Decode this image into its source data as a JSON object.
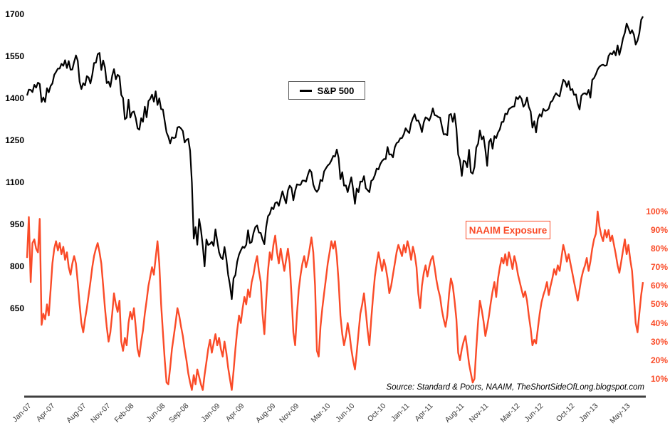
{
  "legend": {
    "sp500": "S&P 500",
    "naaim": "NAAIM Exposure"
  },
  "colors": {
    "sp500_line": "#000000",
    "naaim_line": "#fa4b28",
    "axis_line": "#3f3f3f",
    "x_label": "#3a3a3a"
  },
  "chart_data": {
    "type": "line",
    "frequency": "weekly",
    "title": "",
    "source_note": "Source: Standard & Poors, NAAIM, TheShortSideOfLong.blogspot.com",
    "x_tick_labels": [
      "Jan-07",
      "Apr-07",
      "Aug-07",
      "Nov-07",
      "Feb-08",
      "Jun-08",
      "Sep-08",
      "Jan-09",
      "Apr-09",
      "Aug-09",
      "Nov-09",
      "Mar-10",
      "Jun-10",
      "Oct-10",
      "Jan-11",
      "Apr-11",
      "Aug-11",
      "Nov-11",
      "Mar-12",
      "Jun-12",
      "Oct-12",
      "Jan-13",
      "May-13"
    ],
    "left_axis": {
      "series": "S&P 500",
      "ticks": [
        1700,
        1550,
        1400,
        1250,
        1100,
        950,
        800,
        650
      ],
      "range": [
        650,
        1700
      ]
    },
    "right_axis": {
      "series": "NAAIM Exposure",
      "ticks": [
        "100%",
        "90%",
        "80%",
        "70%",
        "60%",
        "50%",
        "40%",
        "30%",
        "20%",
        "10%"
      ],
      "range_pct": [
        0,
        100
      ]
    },
    "series": [
      {
        "name": "S&P 500",
        "axis": "left",
        "color": "#000000",
        "values": [
          1410,
          1431,
          1430,
          1422,
          1448,
          1438,
          1456,
          1451,
          1387,
          1403,
          1387,
          1436,
          1421,
          1444,
          1453,
          1484,
          1494,
          1506,
          1506,
          1523,
          1516,
          1536,
          1508,
          1533,
          1502,
          1503,
          1530,
          1553,
          1534,
          1459,
          1433,
          1454,
          1446,
          1479,
          1474,
          1453,
          1484,
          1526,
          1527,
          1557,
          1562,
          1501,
          1535,
          1510,
          1454,
          1459,
          1441,
          1481,
          1504,
          1468,
          1484,
          1478,
          1412,
          1401,
          1325,
          1331,
          1395,
          1331,
          1350,
          1353,
          1330,
          1293,
          1288,
          1329,
          1316,
          1370,
          1332,
          1390,
          1398,
          1413,
          1388,
          1425,
          1376,
          1400,
          1361,
          1360,
          1318,
          1278,
          1263,
          1239,
          1261,
          1258,
          1260,
          1296,
          1298,
          1292,
          1283,
          1242,
          1252,
          1255,
          1213,
          1099,
          899,
          940,
          877,
          969,
          931,
          873,
          800,
          896,
          876,
          880,
          888,
          873,
          932,
          890,
          850,
          832,
          826,
          869,
          827,
          770,
          735,
          683,
          757,
          769,
          816,
          842,
          857,
          870,
          866,
          877,
          929,
          883,
          887,
          919,
          940,
          946,
          921,
          919,
          896,
          879,
          940,
          979,
          987,
          1010,
          1004,
          1026,
          1029,
          1016,
          1043,
          1068,
          1044,
          1025,
          1071,
          1088,
          1080,
          1036,
          1069,
          1093,
          1091,
          1091,
          1106,
          1106,
          1102,
          1126,
          1145,
          1136,
          1092,
          1074,
          1066,
          1076,
          1109,
          1104,
          1139,
          1150,
          1160,
          1166,
          1178,
          1194,
          1192,
          1217,
          1187,
          1111,
          1136,
          1088,
          1089,
          1065,
          1092,
          1118,
          1077,
          1023,
          1078,
          1065,
          1103,
          1102,
          1122,
          1079,
          1072,
          1065,
          1105,
          1110,
          1126,
          1149,
          1146,
          1165,
          1176,
          1183,
          1183,
          1226,
          1199,
          1200,
          1189,
          1225,
          1240,
          1244,
          1257,
          1258,
          1272,
          1293,
          1283,
          1276,
          1311,
          1329,
          1343,
          1320,
          1321,
          1304,
          1279,
          1314,
          1332,
          1328,
          1320,
          1337,
          1364,
          1340,
          1338,
          1333,
          1331,
          1300,
          1271,
          1272,
          1268,
          1340,
          1344,
          1316,
          1345,
          1292,
          1199,
          1179,
          1123,
          1177,
          1174,
          1154,
          1216,
          1136,
          1131,
          1155,
          1224,
          1238,
          1285,
          1253,
          1264,
          1216,
          1159,
          1244,
          1255,
          1220,
          1265,
          1258,
          1278,
          1289,
          1315,
          1316,
          1345,
          1343,
          1361,
          1366,
          1370,
          1371,
          1404,
          1397,
          1408,
          1398,
          1370,
          1379,
          1403,
          1369,
          1353,
          1295,
          1318,
          1278,
          1326,
          1343,
          1335,
          1362,
          1355,
          1357,
          1363,
          1386,
          1391,
          1406,
          1418,
          1411,
          1407,
          1438,
          1466,
          1460,
          1441,
          1461,
          1429,
          1433,
          1412,
          1414,
          1380,
          1360,
          1409,
          1416,
          1418,
          1413,
          1430,
          1402,
          1466,
          1472,
          1486,
          1503,
          1513,
          1518,
          1520,
          1516,
          1518,
          1551,
          1561,
          1557,
          1569,
          1553,
          1589,
          1555,
          1582,
          1614,
          1634,
          1667,
          1650,
          1631,
          1643,
          1627,
          1592,
          1606,
          1632,
          1680,
          1692
        ]
      },
      {
        "name": "NAAIM Exposure",
        "axis": "right",
        "color": "#fa4b28",
        "values": [
          75,
          97,
          62,
          83,
          85,
          80,
          78,
          96,
          39,
          45,
          42,
          50,
          44,
          58,
          72,
          80,
          84,
          79,
          83,
          77,
          81,
          74,
          78,
          70,
          66,
          72,
          76,
          72,
          62,
          50,
          40,
          35,
          42,
          48,
          55,
          62,
          70,
          76,
          80,
          83,
          78,
          72,
          60,
          48,
          38,
          30,
          35,
          45,
          56,
          50,
          46,
          52,
          30,
          25,
          32,
          28,
          40,
          46,
          42,
          48,
          38,
          26,
          22,
          30,
          36,
          45,
          52,
          60,
          65,
          70,
          66,
          75,
          84,
          72,
          50,
          35,
          20,
          8,
          7,
          16,
          26,
          33,
          40,
          48,
          44,
          38,
          33,
          26,
          20,
          13,
          8,
          4,
          12,
          7,
          15,
          11,
          7,
          4,
          12,
          19,
          26,
          31,
          24,
          29,
          34,
          28,
          32,
          26,
          22,
          30,
          24,
          16,
          10,
          4,
          14,
          26,
          36,
          44,
          40,
          48,
          54,
          50,
          58,
          54,
          62,
          66,
          72,
          76,
          68,
          62,
          45,
          34,
          52,
          68,
          78,
          74,
          82,
          87,
          78,
          72,
          80,
          74,
          68,
          74,
          80,
          72,
          55,
          35,
          28,
          45,
          58,
          66,
          72,
          76,
          70,
          74,
          80,
          86,
          78,
          60,
          25,
          22,
          38,
          48,
          56,
          64,
          72,
          78,
          84,
          80,
          84,
          76,
          62,
          44,
          34,
          28,
          33,
          40,
          34,
          26,
          20,
          15,
          24,
          35,
          45,
          50,
          56,
          46,
          36,
          28,
          42,
          54,
          65,
          72,
          78,
          73,
          68,
          74,
          70,
          64,
          56,
          60,
          66,
          72,
          78,
          82,
          79,
          76,
          82,
          78,
          84,
          80,
          74,
          81,
          77,
          70,
          56,
          48,
          60,
          67,
          71,
          65,
          70,
          74,
          76,
          70,
          63,
          58,
          54,
          47,
          42,
          38,
          44,
          56,
          64,
          60,
          52,
          42,
          24,
          20,
          26,
          30,
          33,
          26,
          18,
          13,
          8,
          10,
          26,
          41,
          52,
          47,
          41,
          33,
          38,
          44,
          51,
          57,
          62,
          54,
          64,
          70,
          75,
          72,
          77,
          71,
          78,
          74,
          69,
          76,
          72,
          66,
          62,
          58,
          54,
          57,
          52,
          44,
          37,
          28,
          31,
          29,
          37,
          45,
          51,
          55,
          58,
          62,
          55,
          60,
          64,
          69,
          66,
          71,
          68,
          75,
          82,
          78,
          73,
          77,
          72,
          67,
          62,
          57,
          52,
          58,
          64,
          68,
          71,
          75,
          68,
          73,
          80,
          85,
          88,
          100,
          92,
          87,
          84,
          90,
          86,
          90,
          84,
          87,
          82,
          77,
          71,
          67,
          73,
          79,
          85,
          77,
          82,
          74,
          68,
          54,
          40,
          35,
          45,
          55,
          62
        ]
      }
    ]
  }
}
